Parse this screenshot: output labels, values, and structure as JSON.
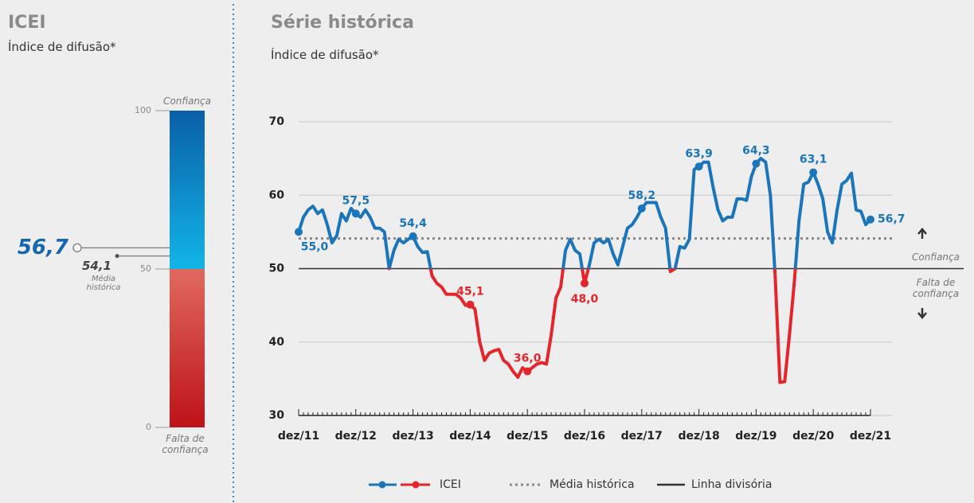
{
  "chart_data": [
    {
      "type": "gauge",
      "title": "ICEI",
      "subtitle": "Índice de difusão*",
      "value": 56.7,
      "value_label": "56,7",
      "mean": 54.1,
      "mean_label": "54,1",
      "mean_name": "Média histórica",
      "ylim": [
        0,
        100
      ],
      "yticks": [
        0,
        50,
        100
      ],
      "threshold": 50,
      "top_label": "Confiança",
      "bottom_label": "Falta de confiança",
      "color_above": "#0a72b8",
      "color_below": "#c4161c",
      "value_color": "#1565b0"
    },
    {
      "type": "line",
      "title": "Série histórica",
      "subtitle": "Índice de difusão*",
      "categories": [
        "dez/11",
        null,
        null,
        null,
        null,
        null,
        null,
        null,
        null,
        null,
        null,
        null,
        "dez/12",
        null,
        null,
        null,
        null,
        null,
        null,
        null,
        null,
        null,
        null,
        null,
        "dez/13",
        null,
        null,
        null,
        null,
        null,
        null,
        null,
        null,
        null,
        null,
        null,
        "dez/14",
        null,
        null,
        null,
        null,
        null,
        null,
        null,
        null,
        null,
        null,
        null,
        "dez/15",
        null,
        null,
        null,
        null,
        null,
        null,
        null,
        null,
        null,
        null,
        null,
        "dez/16",
        null,
        null,
        null,
        null,
        null,
        null,
        null,
        null,
        null,
        null,
        null,
        "dez/17",
        null,
        null,
        null,
        null,
        null,
        null,
        null,
        null,
        null,
        null,
        null,
        "dez/18",
        null,
        null,
        null,
        null,
        null,
        null,
        null,
        null,
        null,
        null,
        null,
        "dez/19",
        null,
        null,
        null,
        null,
        null,
        null,
        null,
        null,
        null,
        null,
        null,
        "dez/20",
        null,
        null,
        null,
        null,
        null,
        null,
        null,
        null,
        null,
        null,
        null,
        "dez/21"
      ],
      "series": [
        {
          "name": "ICEI",
          "color": "#1a75bb",
          "color_below": "#e3262c",
          "values": [
            55.0,
            57,
            58,
            58.5,
            57.5,
            58,
            56,
            53.5,
            54.5,
            57.5,
            56.5,
            58.2,
            57.5,
            57,
            58,
            57,
            55.5,
            55.5,
            55,
            50,
            52.5,
            54,
            53.5,
            54,
            54.4,
            53,
            52.2,
            52.3,
            49,
            48,
            47.5,
            46.5,
            46.5,
            46.5,
            46,
            45,
            45.1,
            44.5,
            40,
            37.5,
            38.5,
            38.8,
            39,
            37.5,
            37,
            36,
            35.2,
            36.5,
            36.0,
            36.5,
            37,
            37.2,
            37,
            41,
            46,
            47.5,
            52.5,
            54,
            52.5,
            52,
            48.0,
            50.5,
            53.5,
            54,
            53.5,
            54,
            52,
            50.5,
            53,
            55.5,
            56,
            57,
            58.2,
            59,
            59,
            59,
            57,
            55.5,
            49.6,
            50,
            53,
            52.8,
            54,
            63.5,
            63.9,
            64.5,
            64.5,
            61,
            58,
            56.5,
            57,
            57,
            59.5,
            59.5,
            59.3,
            62.5,
            64.3,
            65,
            64.5,
            60,
            49,
            34.5,
            34.6,
            41,
            48,
            56.5,
            61.5,
            61.8,
            63.1,
            61.5,
            59.5,
            55,
            53.5,
            58,
            61.5,
            62,
            63,
            58,
            57.8,
            56,
            56.7
          ],
          "value_labels": [
            "55,0",
            null,
            null,
            null,
            null,
            null,
            null,
            null,
            null,
            null,
            null,
            null,
            "57,5",
            null,
            null,
            null,
            null,
            null,
            null,
            null,
            null,
            null,
            null,
            null,
            "54,4",
            null,
            null,
            null,
            null,
            null,
            null,
            null,
            null,
            null,
            null,
            null,
            "45,1",
            null,
            null,
            null,
            null,
            null,
            null,
            null,
            null,
            null,
            null,
            null,
            "36,0",
            null,
            null,
            null,
            null,
            null,
            null,
            null,
            null,
            null,
            null,
            null,
            "48,0",
            null,
            null,
            null,
            null,
            null,
            null,
            null,
            null,
            null,
            null,
            null,
            "58,2",
            null,
            null,
            null,
            null,
            null,
            null,
            null,
            null,
            null,
            null,
            null,
            "63,9",
            null,
            null,
            null,
            null,
            null,
            null,
            null,
            null,
            null,
            null,
            null,
            "64,3",
            null,
            null,
            null,
            null,
            null,
            null,
            null,
            null,
            null,
            null,
            null,
            "63,1",
            null,
            null,
            null,
            null,
            null,
            null,
            null,
            null,
            null,
            null,
            null,
            "56,7"
          ]
        }
      ],
      "ylim": [
        30,
        70
      ],
      "yticks": [
        30,
        40,
        50,
        60,
        70
      ],
      "grid": true,
      "threshold": 50,
      "reference_lines": [
        {
          "name": "Média histórica",
          "value": 54.1,
          "style": "dotted"
        },
        {
          "name": "Linha divisória",
          "value": 50,
          "style": "solid"
        }
      ],
      "above_label": "Confiança",
      "below_label": "Falta de confiança"
    }
  ]
}
